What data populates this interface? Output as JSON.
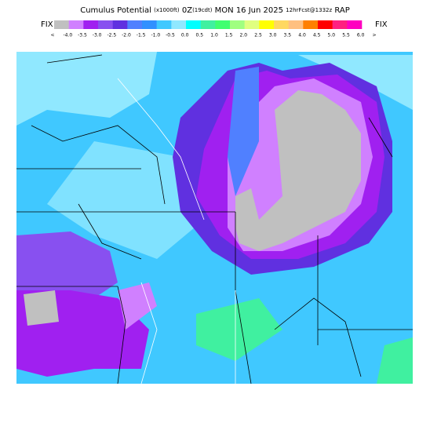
{
  "header": {
    "title_main": "Cumulus Potential",
    "title_units": "(x1000ft)",
    "title_time": "0Z",
    "title_local": "(19cdt)",
    "title_date": "MON 16 Jun 2025",
    "title_fcst": "12hrFcst@1332z",
    "title_model": "RAP",
    "fix_left": "FIX",
    "fix_right": "FIX"
  },
  "legend": {
    "low_label": "<",
    "high_label": ">",
    "labels": [
      "-4.0",
      "-3.5",
      "-3.0",
      "-2.5",
      "-2.0",
      "-1.5",
      "-1.0",
      "-0.5",
      "0.0",
      "0.5",
      "1.0",
      "1.5",
      "2.0",
      "2.5",
      "3.0",
      "3.5",
      "4.0",
      "4.5",
      "5.0",
      "5.5",
      "6.0"
    ],
    "colors": [
      "#c0c0c0",
      "#d080ff",
      "#a020f0",
      "#8850f0",
      "#6030e0",
      "#5080ff",
      "#3090ff",
      "#40c8ff",
      "#90e8ff",
      "#00ffff",
      "#40f0a0",
      "#40ff70",
      "#a0ff80",
      "#e0ff80",
      "#ffff00",
      "#ffd860",
      "#ffc080",
      "#ff8000",
      "#ff0000",
      "#ff2080",
      "#ff00c0"
    ]
  }
}
